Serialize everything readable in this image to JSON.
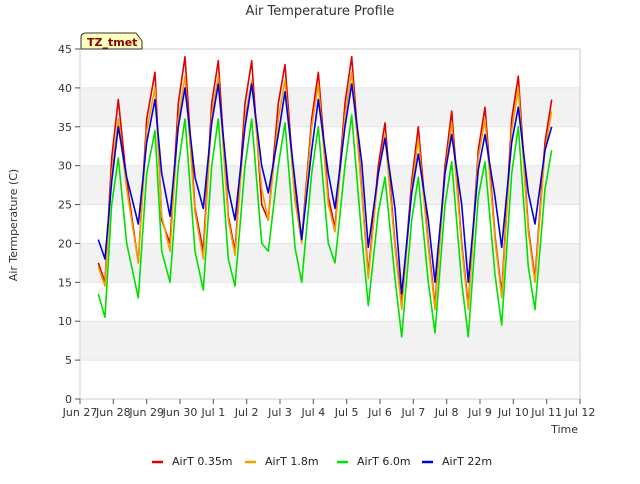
{
  "chart_data": {
    "type": "line",
    "title": "Air Temperature Profile",
    "xlabel": "Time",
    "ylabel": "Air Termperature (C)",
    "badge": "TZ_tmet",
    "ylim": [
      0,
      45
    ],
    "yticks": [
      0,
      5,
      10,
      15,
      20,
      25,
      30,
      35,
      40,
      45
    ],
    "xlim": [
      0,
      15
    ],
    "xtick_labels": [
      "Jun 27",
      "Jun 28",
      "Jun 29",
      "Jun 30",
      "Jul 1",
      "Jul 2",
      "Jul 3",
      "Jul 4",
      "Jul 5",
      "Jul 6",
      "Jul 7",
      "Jul 8",
      "Jul 9",
      "Jul 10",
      "Jul 11",
      "Jul 12"
    ],
    "grid": "horizontal bands",
    "legend": "bottom",
    "x_unit": "days since Jun 27 00:00",
    "series": [
      {
        "name": "AirT 0.35m",
        "color": "#e00000",
        "x": [
          0.55,
          0.75,
          0.95,
          1.15,
          1.4,
          1.75,
          2.0,
          2.25,
          2.45,
          2.7,
          2.95,
          3.15,
          3.45,
          3.7,
          3.95,
          4.15,
          4.45,
          4.65,
          4.95,
          5.15,
          5.45,
          5.65,
          5.95,
          6.15,
          6.45,
          6.65,
          6.95,
          7.15,
          7.45,
          7.65,
          7.95,
          8.15,
          8.45,
          8.65,
          8.95,
          9.15,
          9.45,
          9.65,
          9.95,
          10.15,
          10.45,
          10.65,
          10.95,
          11.15,
          11.45,
          11.65,
          11.95,
          12.15,
          12.45,
          12.65,
          12.95,
          13.15,
          13.45,
          13.65,
          13.95,
          14.15
        ],
        "y": [
          17.5,
          15.0,
          31.0,
          38.5,
          28.0,
          17.5,
          36.0,
          42.0,
          23.0,
          20.0,
          38.0,
          44.0,
          24.5,
          19.0,
          38.0,
          43.5,
          23.5,
          19.0,
          38.0,
          43.5,
          25.0,
          23.0,
          38.0,
          43.0,
          26.0,
          20.5,
          36.0,
          42.0,
          26.0,
          22.0,
          38.0,
          44.0,
          27.0,
          16.0,
          30.0,
          35.5,
          20.0,
          12.0,
          28.0,
          35.0,
          20.0,
          12.0,
          30.0,
          37.0,
          20.0,
          12.0,
          32.0,
          37.5,
          21.0,
          13.5,
          36.0,
          41.5,
          22.0,
          15.5,
          33.0,
          38.5
        ]
      },
      {
        "name": "AirT 1.8m",
        "color": "#f0a000",
        "x": [
          0.55,
          0.75,
          0.95,
          1.15,
          1.4,
          1.75,
          2.0,
          2.25,
          2.45,
          2.7,
          2.95,
          3.15,
          3.45,
          3.7,
          3.95,
          4.15,
          4.45,
          4.65,
          4.95,
          5.15,
          5.45,
          5.65,
          5.95,
          6.15,
          6.45,
          6.65,
          6.95,
          7.15,
          7.45,
          7.65,
          7.95,
          8.15,
          8.45,
          8.65,
          8.95,
          9.15,
          9.45,
          9.65,
          9.95,
          10.15,
          10.45,
          10.65,
          10.95,
          11.15,
          11.45,
          11.65,
          11.95,
          12.15,
          12.45,
          12.65,
          12.95,
          13.15,
          13.45,
          13.65,
          13.95,
          14.15
        ],
        "y": [
          17.0,
          14.5,
          29.0,
          36.0,
          27.0,
          17.5,
          34.5,
          40.0,
          23.5,
          19.0,
          36.0,
          41.5,
          24.0,
          18.0,
          36.5,
          41.5,
          23.0,
          18.5,
          36.0,
          41.0,
          27.0,
          23.0,
          36.0,
          41.0,
          25.5,
          20.0,
          35.0,
          40.5,
          25.0,
          21.5,
          36.5,
          42.0,
          26.5,
          15.5,
          29.0,
          34.0,
          19.5,
          11.5,
          27.0,
          33.5,
          19.5,
          11.5,
          29.0,
          35.5,
          19.5,
          11.5,
          31.0,
          36.0,
          20.5,
          13.0,
          34.5,
          40.0,
          21.5,
          15.0,
          32.0,
          37.0
        ]
      },
      {
        "name": "AirT 6.0m",
        "color": "#00e000",
        "x": [
          0.55,
          0.75,
          0.95,
          1.15,
          1.4,
          1.75,
          2.0,
          2.25,
          2.45,
          2.7,
          2.95,
          3.15,
          3.45,
          3.7,
          3.95,
          4.15,
          4.45,
          4.65,
          4.95,
          5.15,
          5.45,
          5.65,
          5.95,
          6.15,
          6.45,
          6.65,
          6.95,
          7.15,
          7.45,
          7.65,
          7.95,
          8.15,
          8.45,
          8.65,
          8.95,
          9.15,
          9.45,
          9.65,
          9.95,
          10.15,
          10.45,
          10.65,
          10.95,
          11.15,
          11.45,
          11.65,
          11.95,
          12.15,
          12.45,
          12.65,
          12.95,
          13.15,
          13.45,
          13.65,
          13.95,
          14.15
        ],
        "y": [
          13.5,
          10.5,
          25.0,
          31.0,
          20.0,
          13.0,
          29.0,
          34.5,
          19.0,
          15.0,
          30.0,
          36.0,
          19.0,
          14.0,
          30.0,
          36.0,
          18.0,
          14.5,
          30.0,
          36.0,
          20.0,
          19.0,
          30.0,
          35.5,
          19.5,
          15.0,
          29.0,
          35.0,
          20.0,
          17.5,
          30.0,
          36.5,
          21.0,
          12.0,
          24.0,
          28.5,
          15.5,
          8.0,
          23.0,
          28.5,
          15.0,
          8.5,
          25.0,
          30.5,
          15.0,
          8.0,
          26.0,
          30.5,
          16.0,
          9.5,
          29.0,
          35.0,
          17.0,
          11.5,
          27.0,
          32.0
        ]
      },
      {
        "name": "AirT 22m",
        "color": "#0000dd",
        "x": [
          0.55,
          0.75,
          0.95,
          1.15,
          1.4,
          1.75,
          2.0,
          2.25,
          2.45,
          2.7,
          2.95,
          3.15,
          3.45,
          3.7,
          3.95,
          4.15,
          4.45,
          4.65,
          4.95,
          5.15,
          5.45,
          5.65,
          5.95,
          6.15,
          6.45,
          6.65,
          6.95,
          7.15,
          7.45,
          7.65,
          7.95,
          8.15,
          8.45,
          8.65,
          8.95,
          9.15,
          9.45,
          9.65,
          9.95,
          10.15,
          10.45,
          10.65,
          10.95,
          11.15,
          11.45,
          11.65,
          11.95,
          12.15,
          12.45,
          12.65,
          12.95,
          13.15,
          13.45,
          13.65,
          13.95,
          14.15
        ],
        "y": [
          20.5,
          18.0,
          28.0,
          35.0,
          28.5,
          22.5,
          33.0,
          38.5,
          29.0,
          23.5,
          35.0,
          40.0,
          28.5,
          24.5,
          35.5,
          40.5,
          27.0,
          23.0,
          35.0,
          40.5,
          30.0,
          26.5,
          34.0,
          39.5,
          28.0,
          20.5,
          32.0,
          38.5,
          29.0,
          24.5,
          35.0,
          40.5,
          30.5,
          19.5,
          29.0,
          33.5,
          24.5,
          13.5,
          26.5,
          31.5,
          23.0,
          15.0,
          29.0,
          34.0,
          25.0,
          15.0,
          29.5,
          34.0,
          26.0,
          19.5,
          33.0,
          37.5,
          26.5,
          22.5,
          32.0,
          35.0
        ]
      }
    ]
  }
}
